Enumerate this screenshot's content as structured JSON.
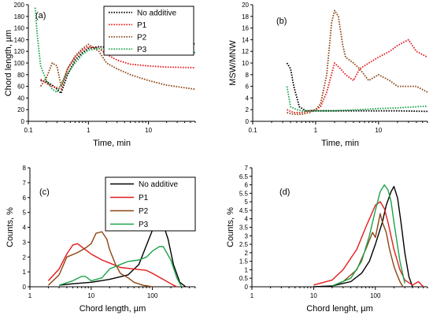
{
  "chart_data": [
    {
      "panel": "(a)",
      "type": "line",
      "xlabel": "Time, min",
      "ylabel": "Chord length, µm",
      "xscale": "log",
      "xlim": [
        0.1,
        60
      ],
      "ylim": [
        0,
        200
      ],
      "xticks": [
        0.1,
        1,
        10
      ],
      "xtick_labels": [
        "0.1",
        "1",
        "10"
      ],
      "yticks": [
        0,
        20,
        40,
        60,
        80,
        100,
        120,
        140,
        160,
        180,
        200
      ],
      "ytick_labels": [
        "0",
        "20",
        "40",
        "60",
        "80",
        "100",
        "120",
        "140",
        "160",
        "180",
        "200"
      ],
      "line_style": "dotted",
      "legend": "top-right",
      "series": [
        {
          "name": "No additive",
          "color": "#000000",
          "x": [
            0.16,
            0.2,
            0.25,
            0.3,
            0.35,
            0.45,
            0.6,
            0.8,
            1,
            1.5,
            2,
            3,
            5,
            10,
            20,
            60
          ],
          "y": [
            70,
            68,
            62,
            55,
            48,
            80,
            105,
            118,
            125,
            128,
            127,
            128,
            130,
            131,
            132,
            133
          ]
        },
        {
          "name": "P1",
          "color": "#e41a1c",
          "x": [
            0.16,
            0.2,
            0.25,
            0.3,
            0.35,
            0.45,
            0.6,
            0.8,
            1,
            1.5,
            2,
            3,
            5,
            10,
            20,
            60
          ],
          "y": [
            72,
            65,
            60,
            58,
            55,
            90,
            110,
            122,
            128,
            125,
            115,
            105,
            98,
            95,
            93,
            92
          ]
        },
        {
          "name": "P2",
          "color": "#8b4513",
          "x": [
            0.16,
            0.2,
            0.25,
            0.3,
            0.35,
            0.45,
            0.6,
            0.8,
            1,
            1.5,
            2,
            3,
            5,
            10,
            20,
            60
          ],
          "y": [
            60,
            75,
            100,
            95,
            60,
            90,
            112,
            125,
            132,
            120,
            100,
            90,
            80,
            70,
            62,
            55
          ]
        },
        {
          "name": "P3",
          "color": "#1aa34a",
          "x": [
            0.13,
            0.14,
            0.16,
            0.2,
            0.25,
            0.3,
            0.4,
            0.6,
            0.8,
            1,
            1.5,
            2,
            3,
            5,
            10,
            20,
            60
          ],
          "y": [
            195,
            150,
            95,
            70,
            55,
            50,
            75,
            100,
            115,
            122,
            125,
            122,
            120,
            120,
            118,
            118,
            118
          ]
        }
      ]
    },
    {
      "panel": "(b)",
      "type": "line",
      "xlabel": "Time, min",
      "ylabel": "MSW/MNW",
      "xscale": "log",
      "xlim": [
        0.1,
        60
      ],
      "ylim": [
        0,
        20
      ],
      "xticks": [
        0.1,
        1,
        10
      ],
      "xtick_labels": [
        "0.1",
        "1",
        "10"
      ],
      "yticks": [
        0,
        2,
        4,
        6,
        8,
        10,
        12,
        14,
        16,
        18,
        20
      ],
      "ytick_labels": [
        "0",
        "2",
        "4",
        "6",
        "8",
        "10",
        "12",
        "14",
        "16",
        "18",
        "20"
      ],
      "line_style": "dotted",
      "series": [
        {
          "name": "No additive",
          "color": "#000000",
          "x": [
            0.35,
            0.4,
            0.45,
            0.55,
            0.7,
            1,
            2,
            5,
            10,
            20,
            60
          ],
          "y": [
            10,
            9,
            6,
            2.5,
            1.8,
            1.8,
            1.8,
            1.8,
            1.8,
            1.8,
            1.7
          ]
        },
        {
          "name": "P1",
          "color": "#e41a1c",
          "x": [
            0.35,
            0.45,
            0.6,
            0.8,
            1,
            1.2,
            1.5,
            2,
            2.5,
            3,
            4,
            5,
            7,
            10,
            15,
            20,
            30,
            40,
            60
          ],
          "y": [
            2,
            1.5,
            1.5,
            1.8,
            2,
            2.5,
            5,
            10,
            9,
            8,
            7,
            9,
            10,
            11,
            12,
            13,
            14,
            12,
            11
          ]
        },
        {
          "name": "P2",
          "color": "#8b4513",
          "x": [
            0.35,
            0.45,
            0.6,
            0.8,
            1,
            1.2,
            1.5,
            1.8,
            2,
            2.3,
            2.7,
            3,
            4,
            5,
            7,
            10,
            15,
            20,
            30,
            40,
            60
          ],
          "y": [
            1.5,
            1.2,
            1.2,
            1.5,
            2,
            3,
            8,
            17,
            19,
            18,
            13,
            11,
            10,
            9,
            7,
            8,
            7,
            6,
            6,
            6,
            5
          ]
        },
        {
          "name": "P3",
          "color": "#1aa34a",
          "x": [
            0.35,
            0.4,
            0.5,
            0.6,
            1,
            2,
            5,
            10,
            20,
            40,
            60
          ],
          "y": [
            6,
            2.5,
            2,
            1.8,
            1.8,
            1.8,
            2,
            2.2,
            2.3,
            2.5,
            2.6
          ]
        }
      ]
    },
    {
      "panel": "(c)",
      "type": "line",
      "xlabel": "Chord length, µm",
      "ylabel": "Counts, %",
      "xscale": "log",
      "xlim": [
        1,
        500
      ],
      "ylim": [
        0,
        8
      ],
      "xticks": [
        1,
        10,
        100
      ],
      "xtick_labels": [
        "1",
        "10",
        "100"
      ],
      "yticks": [
        0,
        1,
        2,
        3,
        4,
        5,
        6,
        7,
        8
      ],
      "ytick_labels": [
        "0",
        "1",
        "2",
        "3",
        "4",
        "5",
        "6",
        "7",
        "8"
      ],
      "line_style": "solid",
      "legend": "top-right",
      "series": [
        {
          "name": "No additive",
          "color": "#000000",
          "x": [
            3,
            5,
            10,
            20,
            40,
            60,
            80,
            100,
            130,
            150,
            180,
            220,
            280,
            350
          ],
          "y": [
            0.1,
            0.2,
            0.3,
            0.5,
            0.8,
            1.5,
            2.8,
            3.8,
            4.3,
            4.2,
            3.2,
            1.5,
            0.3,
            0
          ]
        },
        {
          "name": "P1",
          "color": "#e41a1c",
          "x": [
            2,
            3,
            4,
            5,
            6,
            8,
            10,
            15,
            20,
            30,
            50,
            80,
            100,
            150,
            200,
            250
          ],
          "y": [
            0.4,
            1.2,
            2.2,
            2.8,
            2.9,
            2.5,
            2.2,
            1.8,
            1.6,
            1.3,
            1.2,
            1.1,
            0.9,
            0.5,
            0.2,
            0
          ]
        },
        {
          "name": "P2",
          "color": "#8b4513",
          "x": [
            2,
            3,
            4,
            6,
            8,
            10,
            12,
            15,
            18,
            20,
            25,
            30,
            40,
            50,
            70,
            100
          ],
          "y": [
            0.1,
            0.8,
            2.0,
            2.3,
            2.6,
            2.9,
            3.6,
            3.7,
            3.2,
            2.5,
            1.5,
            0.9,
            0.6,
            0.3,
            0.1,
            0
          ]
        },
        {
          "name": "P3",
          "color": "#1aa34a",
          "x": [
            3,
            5,
            7,
            8,
            10,
            15,
            20,
            30,
            40,
            60,
            80,
            100,
            130,
            150,
            200,
            250,
            300
          ],
          "y": [
            0.1,
            0.4,
            0.7,
            0.7,
            0.4,
            0.6,
            1.2,
            1.5,
            1.7,
            1.8,
            2.0,
            2.4,
            2.7,
            2.7,
            1.8,
            0.6,
            0
          ]
        }
      ]
    },
    {
      "panel": "(d)",
      "type": "line",
      "xlabel": "Chord lenght, µm",
      "ylabel": "Counts, %",
      "xscale": "log",
      "xlim": [
        1,
        700
      ],
      "ylim": [
        0,
        7
      ],
      "xticks": [
        1,
        10,
        100
      ],
      "xtick_labels": [
        "1",
        "10",
        "100"
      ],
      "yticks": [
        0,
        0.5,
        1,
        1.5,
        2,
        2.5,
        3,
        3.5,
        4,
        4.5,
        5,
        5.5,
        6,
        6.5,
        7
      ],
      "ytick_labels": [
        "0",
        "0.5",
        "1",
        "1.5",
        "2",
        "2.5",
        "3",
        "3.5",
        "4",
        "4.5",
        "5",
        "5.5",
        "6",
        "6.5",
        "7"
      ],
      "line_style": "solid",
      "series": [
        {
          "name": "No additive",
          "color": "#000000",
          "x": [
            10,
            20,
            40,
            60,
            80,
            100,
            130,
            150,
            180,
            200,
            230,
            260,
            300,
            350,
            400
          ],
          "y": [
            0,
            0.05,
            0.3,
            0.8,
            1.5,
            2.5,
            3.8,
            4.8,
            5.6,
            5.9,
            5.2,
            3.8,
            2.0,
            0.6,
            0
          ]
        },
        {
          "name": "P1",
          "color": "#e41a1c",
          "x": [
            10,
            20,
            30,
            50,
            70,
            100,
            120,
            140,
            160,
            200,
            250,
            300,
            400,
            500,
            600
          ],
          "y": [
            0.1,
            0.4,
            1.0,
            2.2,
            3.5,
            4.8,
            5.0,
            4.6,
            3.8,
            2.2,
            1.0,
            0.4,
            0.1,
            0.3,
            0
          ]
        },
        {
          "name": "P2",
          "color": "#8b4513",
          "x": [
            20,
            30,
            50,
            70,
            90,
            100,
            120,
            130,
            150,
            170,
            200,
            220,
            250,
            280
          ],
          "y": [
            0.05,
            0.3,
            1.0,
            2.2,
            3.2,
            2.9,
            4.3,
            3.8,
            3.2,
            2.2,
            1.2,
            0.8,
            0.3,
            0
          ]
        },
        {
          "name": "P3",
          "color": "#1aa34a",
          "x": [
            20,
            40,
            60,
            80,
            100,
            120,
            140,
            160,
            180,
            200,
            250,
            300
          ],
          "y": [
            0.05,
            0.5,
            1.5,
            3.0,
            4.5,
            5.6,
            6.0,
            5.7,
            5.0,
            3.8,
            1.5,
            0.2
          ]
        }
      ]
    }
  ]
}
